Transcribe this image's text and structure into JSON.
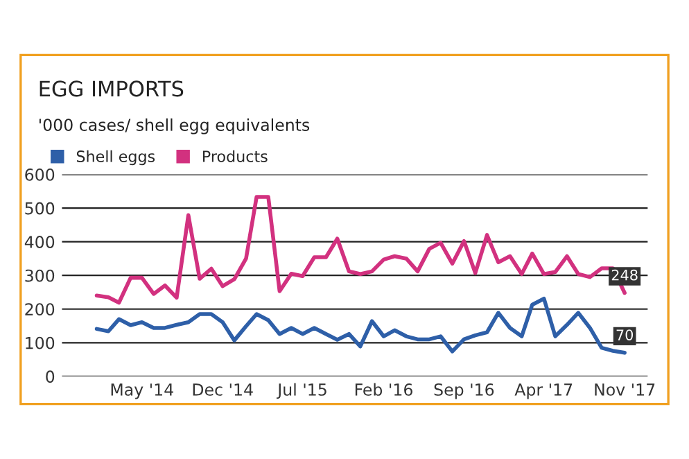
{
  "chart_data": {
    "type": "line",
    "title": "EGG IMPORTS",
    "subtitle": "'000 cases/ shell egg equivalents",
    "x": [
      "2014-01",
      "2014-02",
      "2014-03",
      "2014-04",
      "2014-05",
      "2014-06",
      "2014-07",
      "2014-08",
      "2014-09",
      "2014-10",
      "2014-11",
      "2014-12",
      "2015-01",
      "2015-02",
      "2015-03",
      "2015-04",
      "2015-05",
      "2015-06",
      "2015-07",
      "2015-08",
      "2015-09",
      "2015-10",
      "2015-11",
      "2015-12",
      "2016-01",
      "2016-02",
      "2016-03",
      "2016-04",
      "2016-05",
      "2016-06",
      "2016-07",
      "2016-08",
      "2016-09",
      "2016-10",
      "2016-11",
      "2016-12",
      "2017-01",
      "2017-02",
      "2017-03",
      "2017-04",
      "2017-05",
      "2017-06",
      "2017-07",
      "2017-08",
      "2017-09",
      "2017-10",
      "2017-11"
    ],
    "series": [
      {
        "name": "Shell eggs",
        "color": "#2e5fa8",
        "values": [
          141,
          134,
          170,
          152,
          161,
          144,
          144,
          153,
          161,
          185,
          185,
          161,
          107,
          149,
          185,
          167,
          126,
          144,
          126,
          144,
          126,
          109,
          126,
          89,
          164,
          119,
          137,
          119,
          110,
          110,
          119,
          74,
          110,
          122,
          131,
          189,
          144,
          119,
          213,
          231,
          119,
          153,
          189,
          144,
          85,
          76,
          70
        ],
        "value_labels": [
          null,
          null,
          null,
          null,
          null,
          null,
          null,
          null,
          null,
          null,
          null,
          null,
          null,
          null,
          null,
          null,
          null,
          null,
          null,
          null,
          null,
          null,
          null,
          null,
          null,
          null,
          null,
          null,
          null,
          null,
          null,
          null,
          null,
          null,
          null,
          null,
          null,
          null,
          null,
          null,
          null,
          null,
          null,
          null,
          null,
          null,
          "70"
        ]
      },
      {
        "name": "Products",
        "color": "#d2317f",
        "values": [
          240,
          235,
          219,
          293,
          293,
          245,
          270,
          234,
          479,
          290,
          320,
          268,
          289,
          350,
          533,
          533,
          253,
          305,
          298,
          354,
          354,
          409,
          312,
          304,
          312,
          347,
          357,
          350,
          312,
          379,
          397,
          335,
          402,
          307,
          420,
          339,
          357,
          304,
          365,
          304,
          310,
          357,
          304,
          295,
          321,
          321,
          248
        ],
        "value_labels": [
          null,
          null,
          null,
          null,
          null,
          null,
          null,
          null,
          null,
          null,
          null,
          null,
          null,
          null,
          null,
          null,
          null,
          null,
          null,
          null,
          null,
          null,
          null,
          null,
          null,
          null,
          null,
          null,
          null,
          null,
          null,
          null,
          null,
          null,
          null,
          null,
          null,
          null,
          null,
          null,
          null,
          null,
          null,
          null,
          null,
          null,
          "248"
        ]
      }
    ],
    "xlim": [
      "2013-10",
      "2018-01"
    ],
    "xticks": [
      {
        "value": "2014-05",
        "label": "May '14"
      },
      {
        "value": "2014-12",
        "label": "Dec '14"
      },
      {
        "value": "2015-07",
        "label": "Jul '15"
      },
      {
        "value": "2016-02",
        "label": "Feb '16"
      },
      {
        "value": "2016-09",
        "label": "Sep '16"
      },
      {
        "value": "2017-04",
        "label": "Apr '17"
      },
      {
        "value": "2017-11",
        "label": "Nov '17"
      }
    ],
    "ylim": [
      0,
      600
    ],
    "yticks": [
      0,
      100,
      200,
      300,
      400,
      500,
      600
    ],
    "grid": "y",
    "legend": "top left",
    "marker": "none",
    "line_style": "solid"
  }
}
